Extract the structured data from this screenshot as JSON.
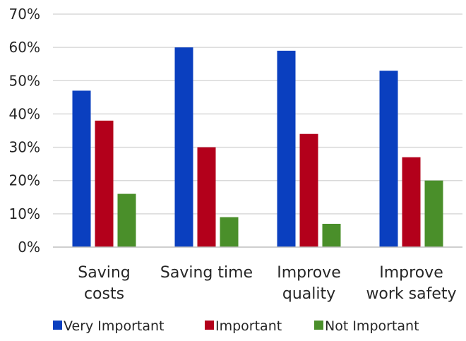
{
  "chart_data": {
    "type": "bar",
    "categories": [
      [
        "Saving",
        "costs"
      ],
      [
        "Saving time"
      ],
      [
        "Improve",
        "quality"
      ],
      [
        "Improve",
        "work safety"
      ]
    ],
    "series": [
      {
        "name": "Very Important",
        "color": "#0a3fbf",
        "values": [
          47,
          60,
          59,
          53
        ]
      },
      {
        "name": "Important",
        "color": "#b3001b",
        "values": [
          38,
          30,
          34,
          27
        ]
      },
      {
        "name": "Not Important",
        "color": "#4a8f2a",
        "values": [
          16,
          9,
          7,
          20
        ]
      }
    ],
    "ylim": [
      0,
      70
    ],
    "yticks": [
      0,
      10,
      20,
      30,
      40,
      50,
      60,
      70
    ],
    "ytick_format": "%",
    "grid": true,
    "legend_position": "bottom"
  }
}
